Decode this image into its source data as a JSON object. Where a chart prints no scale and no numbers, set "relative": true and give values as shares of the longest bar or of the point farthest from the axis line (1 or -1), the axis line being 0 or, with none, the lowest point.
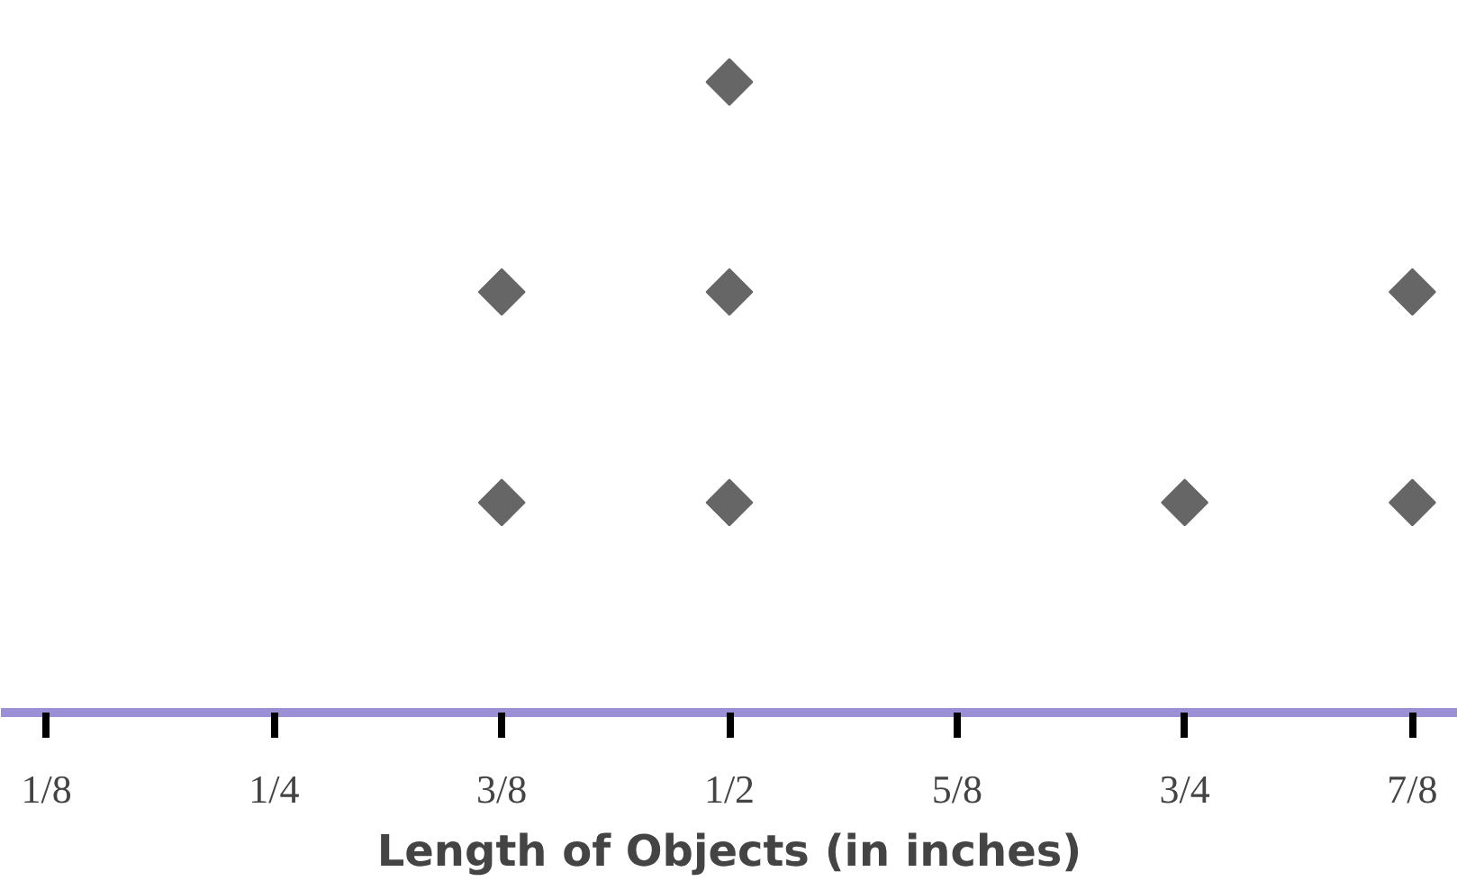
{
  "chart_data": {
    "type": "scatter",
    "xlabel": "Length of Objects (in inches)",
    "relative": true,
    "marker": "diamond",
    "grid": false,
    "xlim": [
      0.1,
      0.9
    ],
    "xticks": [
      {
        "value": 0.125,
        "label": "1/8"
      },
      {
        "value": 0.25,
        "label": "1/4"
      },
      {
        "value": 0.375,
        "label": "3/8"
      },
      {
        "value": 0.5,
        "label": "1/2"
      },
      {
        "value": 0.625,
        "label": "5/8"
      },
      {
        "value": 0.75,
        "label": "3/4"
      },
      {
        "value": 0.875,
        "label": "7/8"
      }
    ],
    "series": [
      {
        "color": "#666666",
        "x": [
          0.375,
          0.375,
          0.5,
          0.5,
          0.5,
          0.75,
          0.875,
          0.875
        ],
        "values": [
          0.333,
          0.667,
          0.333,
          0.667,
          1,
          0.333,
          0.333,
          0.667
        ]
      }
    ]
  }
}
